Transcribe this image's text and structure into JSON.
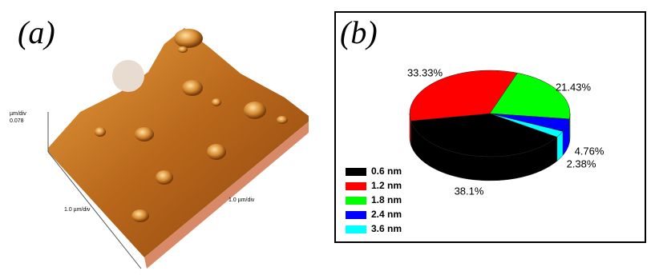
{
  "panel_a": {
    "label": "(a)",
    "z_axis_unit": "µm/div",
    "z_axis_value": "0.078",
    "x_axis_label": "1.0 µm/div",
    "y_axis_label": "1.0 µm/div"
  },
  "chart_data": {
    "type": "pie",
    "title": "(b)",
    "categories": [
      "0.6 nm",
      "1.2 nm",
      "1.8 nm",
      "2.4 nm",
      "3.6 nm"
    ],
    "values": [
      38.1,
      33.33,
      21.43,
      4.76,
      2.38
    ],
    "value_labels": [
      "38.1%",
      "33.33%",
      "21.43%",
      "4.76%",
      "2.38%"
    ],
    "colors": [
      "#000000",
      "#ff0000",
      "#00ff00",
      "#0000ff",
      "#00ffff"
    ],
    "legend": "lower left"
  }
}
